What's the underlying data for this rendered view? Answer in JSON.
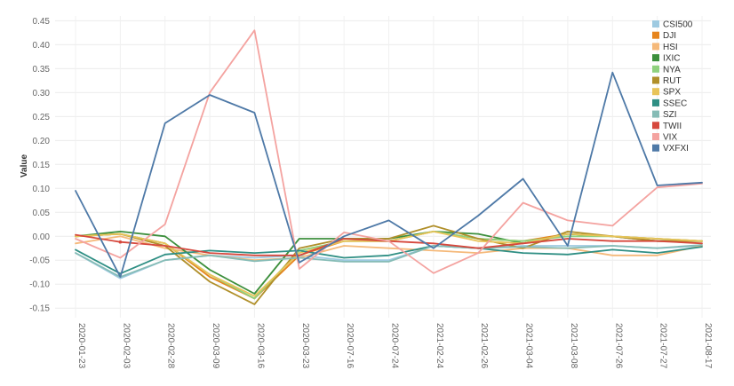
{
  "chart_data": {
    "type": "line",
    "title": "",
    "xlabel": "",
    "ylabel": "Value",
    "ylim": [
      -0.17,
      0.46
    ],
    "yticks": [
      -0.15,
      -0.1,
      -0.05,
      0.0,
      0.05,
      0.1,
      0.15,
      0.2,
      0.25,
      0.3,
      0.35,
      0.4,
      0.45
    ],
    "ytick_labels": [
      "-0.15",
      "-0.10",
      "-0.05",
      "0.00",
      "0.05",
      "0.10",
      "0.15",
      "0.20",
      "0.25",
      "0.30",
      "0.35",
      "0.40",
      "0.45"
    ],
    "grid": true,
    "legend_position": "top-right",
    "categories": [
      "2020-01-23",
      "2020-02-03",
      "2020-02-28",
      "2020-03-09",
      "2020-03-16",
      "2020-03-23",
      "2020-07-16",
      "2020-07-24",
      "2021-02-24",
      "2021-02-26",
      "2021-03-04",
      "2021-03-08",
      "2021-07-26",
      "2021-07-27",
      "2021-08-17"
    ],
    "series": [
      {
        "name": "CSI500",
        "color": "#9ecae1",
        "values": [
          -0.035,
          -0.088,
          -0.05,
          -0.04,
          -0.045,
          -0.04,
          -0.05,
          -0.05,
          -0.02,
          -0.025,
          -0.02,
          -0.02,
          -0.02,
          -0.025,
          -0.02
        ]
      },
      {
        "name": "DJI",
        "color": "#e6851e",
        "values": [
          0.0,
          0.005,
          -0.015,
          -0.085,
          -0.13,
          -0.04,
          -0.01,
          -0.01,
          0.01,
          -0.005,
          -0.01,
          0.005,
          0.0,
          -0.005,
          -0.01
        ]
      },
      {
        "name": "HSI",
        "color": "#f5b97a",
        "values": [
          -0.015,
          0.0,
          -0.025,
          -0.04,
          -0.05,
          -0.045,
          -0.02,
          -0.025,
          -0.03,
          -0.035,
          -0.025,
          -0.025,
          -0.04,
          -0.04,
          -0.02
        ]
      },
      {
        "name": "IXIC",
        "color": "#3c8f3c",
        "values": [
          0.0,
          0.01,
          0.0,
          -0.07,
          -0.12,
          -0.005,
          -0.005,
          -0.005,
          0.01,
          0.005,
          -0.015,
          0.005,
          0.0,
          -0.01,
          -0.01
        ]
      },
      {
        "name": "NYA",
        "color": "#8fd17e",
        "values": [
          0.0,
          0.005,
          -0.015,
          -0.08,
          -0.13,
          -0.03,
          -0.01,
          -0.01,
          0.01,
          -0.005,
          -0.01,
          0.0,
          0.0,
          -0.005,
          -0.01
        ]
      },
      {
        "name": "RUT",
        "color": "#b08f2a",
        "values": [
          0.0,
          0.005,
          -0.02,
          -0.095,
          -0.142,
          -0.025,
          -0.005,
          -0.005,
          0.022,
          -0.005,
          -0.025,
          0.01,
          0.0,
          -0.01,
          -0.01
        ]
      },
      {
        "name": "SPX",
        "color": "#e8c45a",
        "values": [
          0.0,
          0.005,
          -0.015,
          -0.08,
          -0.125,
          -0.035,
          -0.01,
          -0.01,
          0.01,
          -0.01,
          -0.015,
          0.005,
          0.0,
          -0.005,
          -0.01
        ]
      },
      {
        "name": "SSEC",
        "color": "#2f8f84",
        "values": [
          -0.028,
          -0.078,
          -0.038,
          -0.03,
          -0.035,
          -0.03,
          -0.045,
          -0.04,
          -0.02,
          -0.025,
          -0.035,
          -0.038,
          -0.028,
          -0.035,
          -0.022
        ]
      },
      {
        "name": "SZI",
        "color": "#86bcb6",
        "values": [
          -0.035,
          -0.085,
          -0.05,
          -0.04,
          -0.052,
          -0.045,
          -0.053,
          -0.053,
          -0.02,
          -0.025,
          -0.022,
          -0.025,
          -0.02,
          -0.025,
          -0.018
        ]
      },
      {
        "name": "TWII",
        "color": "#d6483d",
        "values": [
          0.003,
          -0.012,
          -0.02,
          -0.035,
          -0.04,
          -0.04,
          -0.005,
          -0.01,
          -0.015,
          -0.025,
          -0.015,
          -0.005,
          -0.01,
          -0.01,
          -0.015
        ]
      },
      {
        "name": "VIX",
        "color": "#f4a3a0",
        "values": [
          -0.005,
          -0.045,
          0.025,
          0.3,
          0.43,
          -0.068,
          0.008,
          -0.01,
          -0.077,
          -0.035,
          0.07,
          0.033,
          0.022,
          0.102,
          0.11
        ]
      },
      {
        "name": "VXFXI",
        "color": "#4e79a7",
        "values": [
          0.095,
          -0.085,
          0.236,
          0.295,
          0.258,
          -0.055,
          0.0,
          0.033,
          -0.025,
          0.043,
          0.12,
          -0.02,
          0.342,
          0.106,
          0.112
        ]
      }
    ]
  }
}
